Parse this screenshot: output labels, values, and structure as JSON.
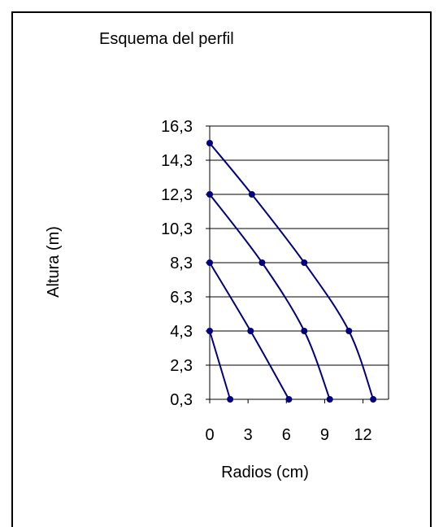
{
  "chart_data": {
    "type": "line",
    "title": "Esquema del perfil",
    "xlabel": "Radios (cm)",
    "ylabel": "Altura (m)",
    "xlim": [
      0,
      14
    ],
    "ylim": [
      0.3,
      16.3
    ],
    "xticks": [
      0,
      3,
      6,
      9,
      12
    ],
    "xtick_labels": [
      "0",
      "3",
      "6",
      "9",
      "12"
    ],
    "yticks": [
      0.3,
      2.3,
      4.3,
      6.3,
      8.3,
      10.3,
      12.3,
      14.3,
      16.3
    ],
    "ytick_labels": [
      "0,3",
      "2,3",
      "4,3",
      "6,3",
      "8,3",
      "10,3",
      "12,3",
      "14,3",
      "16,3"
    ],
    "grid": "horizontal",
    "legend": "none",
    "series_color": "#000080",
    "series": [
      {
        "x": [
          1.6,
          0
        ],
        "y": [
          0.3,
          4.3
        ]
      },
      {
        "x": [
          6.2,
          3.2,
          0
        ],
        "y": [
          0.3,
          4.3,
          8.3
        ]
      },
      {
        "x": [
          9.4,
          7.4,
          4.1,
          0
        ],
        "y": [
          0.3,
          4.3,
          8.3,
          12.3
        ]
      },
      {
        "x": [
          12.8,
          10.9,
          7.4,
          3.3,
          0
        ],
        "y": [
          0.3,
          4.3,
          8.3,
          12.3,
          15.3
        ]
      }
    ]
  }
}
